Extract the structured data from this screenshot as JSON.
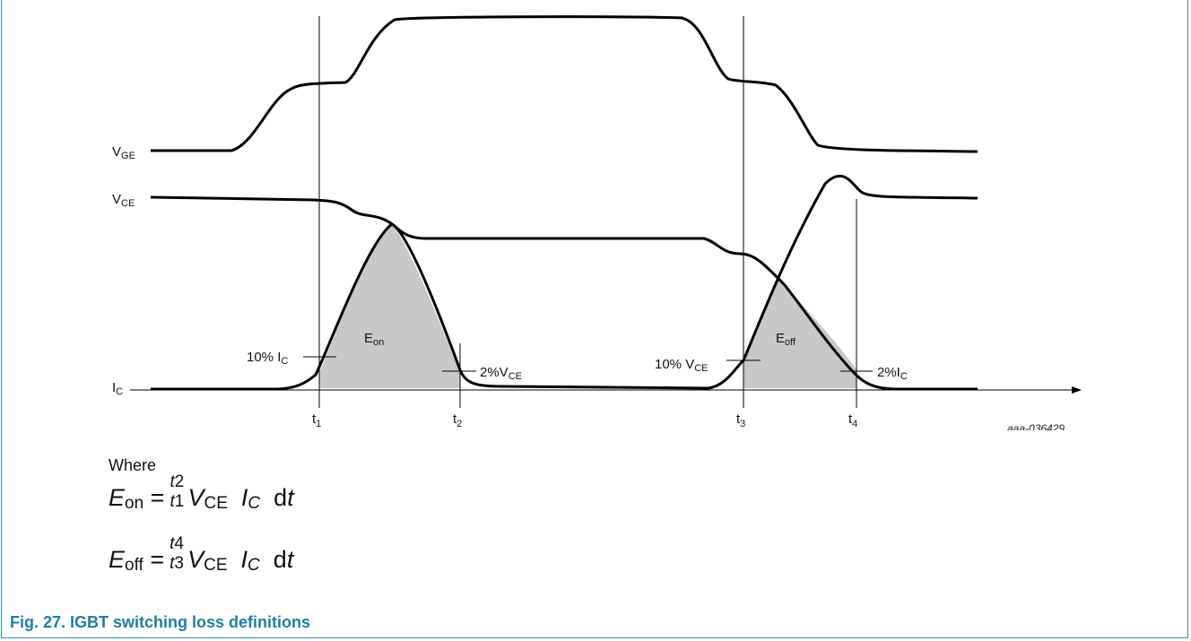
{
  "figure": {
    "signals": {
      "vge": {
        "main": "V",
        "sub": "GE"
      },
      "vce": {
        "main": "V",
        "sub": "CE"
      },
      "ic": {
        "main": "I",
        "sub": "C"
      }
    },
    "times": [
      {
        "main": "t",
        "sub": "1"
      },
      {
        "main": "t",
        "sub": "2"
      },
      {
        "main": "t",
        "sub": "3"
      },
      {
        "main": "t",
        "sub": "4"
      }
    ],
    "regions": {
      "eon": {
        "main": "E",
        "sub": "on"
      },
      "eoff": {
        "main": "E",
        "sub": "off"
      }
    },
    "markers": {
      "ic10": {
        "main": "10% I",
        "sub": "C"
      },
      "vce2": {
        "main": "2%V",
        "sub": "CE"
      },
      "vce10": {
        "main": "10% V",
        "sub": "CE"
      },
      "ic2": {
        "main": "2%I",
        "sub": "C"
      }
    },
    "code": "aaa-036429",
    "fill_color": "#c8c8c8",
    "line_color": "#000000"
  },
  "text": {
    "where": "Where",
    "eq1": {
      "lhs": "E",
      "lhs_sub": "on",
      "eq": "=",
      "upper": "t",
      "upper_sub": "2",
      "lower": "t",
      "lower_sub": "1",
      "v": "V",
      "v_sub": "CE",
      "i": "I",
      "i_sub": "C",
      "d": "d",
      "t": "t"
    },
    "eq2": {
      "lhs": "E",
      "lhs_sub": "off",
      "eq": "=",
      "upper": "t",
      "upper_sub": "4",
      "lower": "t",
      "lower_sub": "3",
      "v": "V",
      "v_sub": "CE",
      "i": "I",
      "i_sub": "C",
      "d": "d",
      "t": "t"
    }
  },
  "caption": "Fig. 27.  IGBT switching loss definitions",
  "caption_color": "#1d7fa0"
}
